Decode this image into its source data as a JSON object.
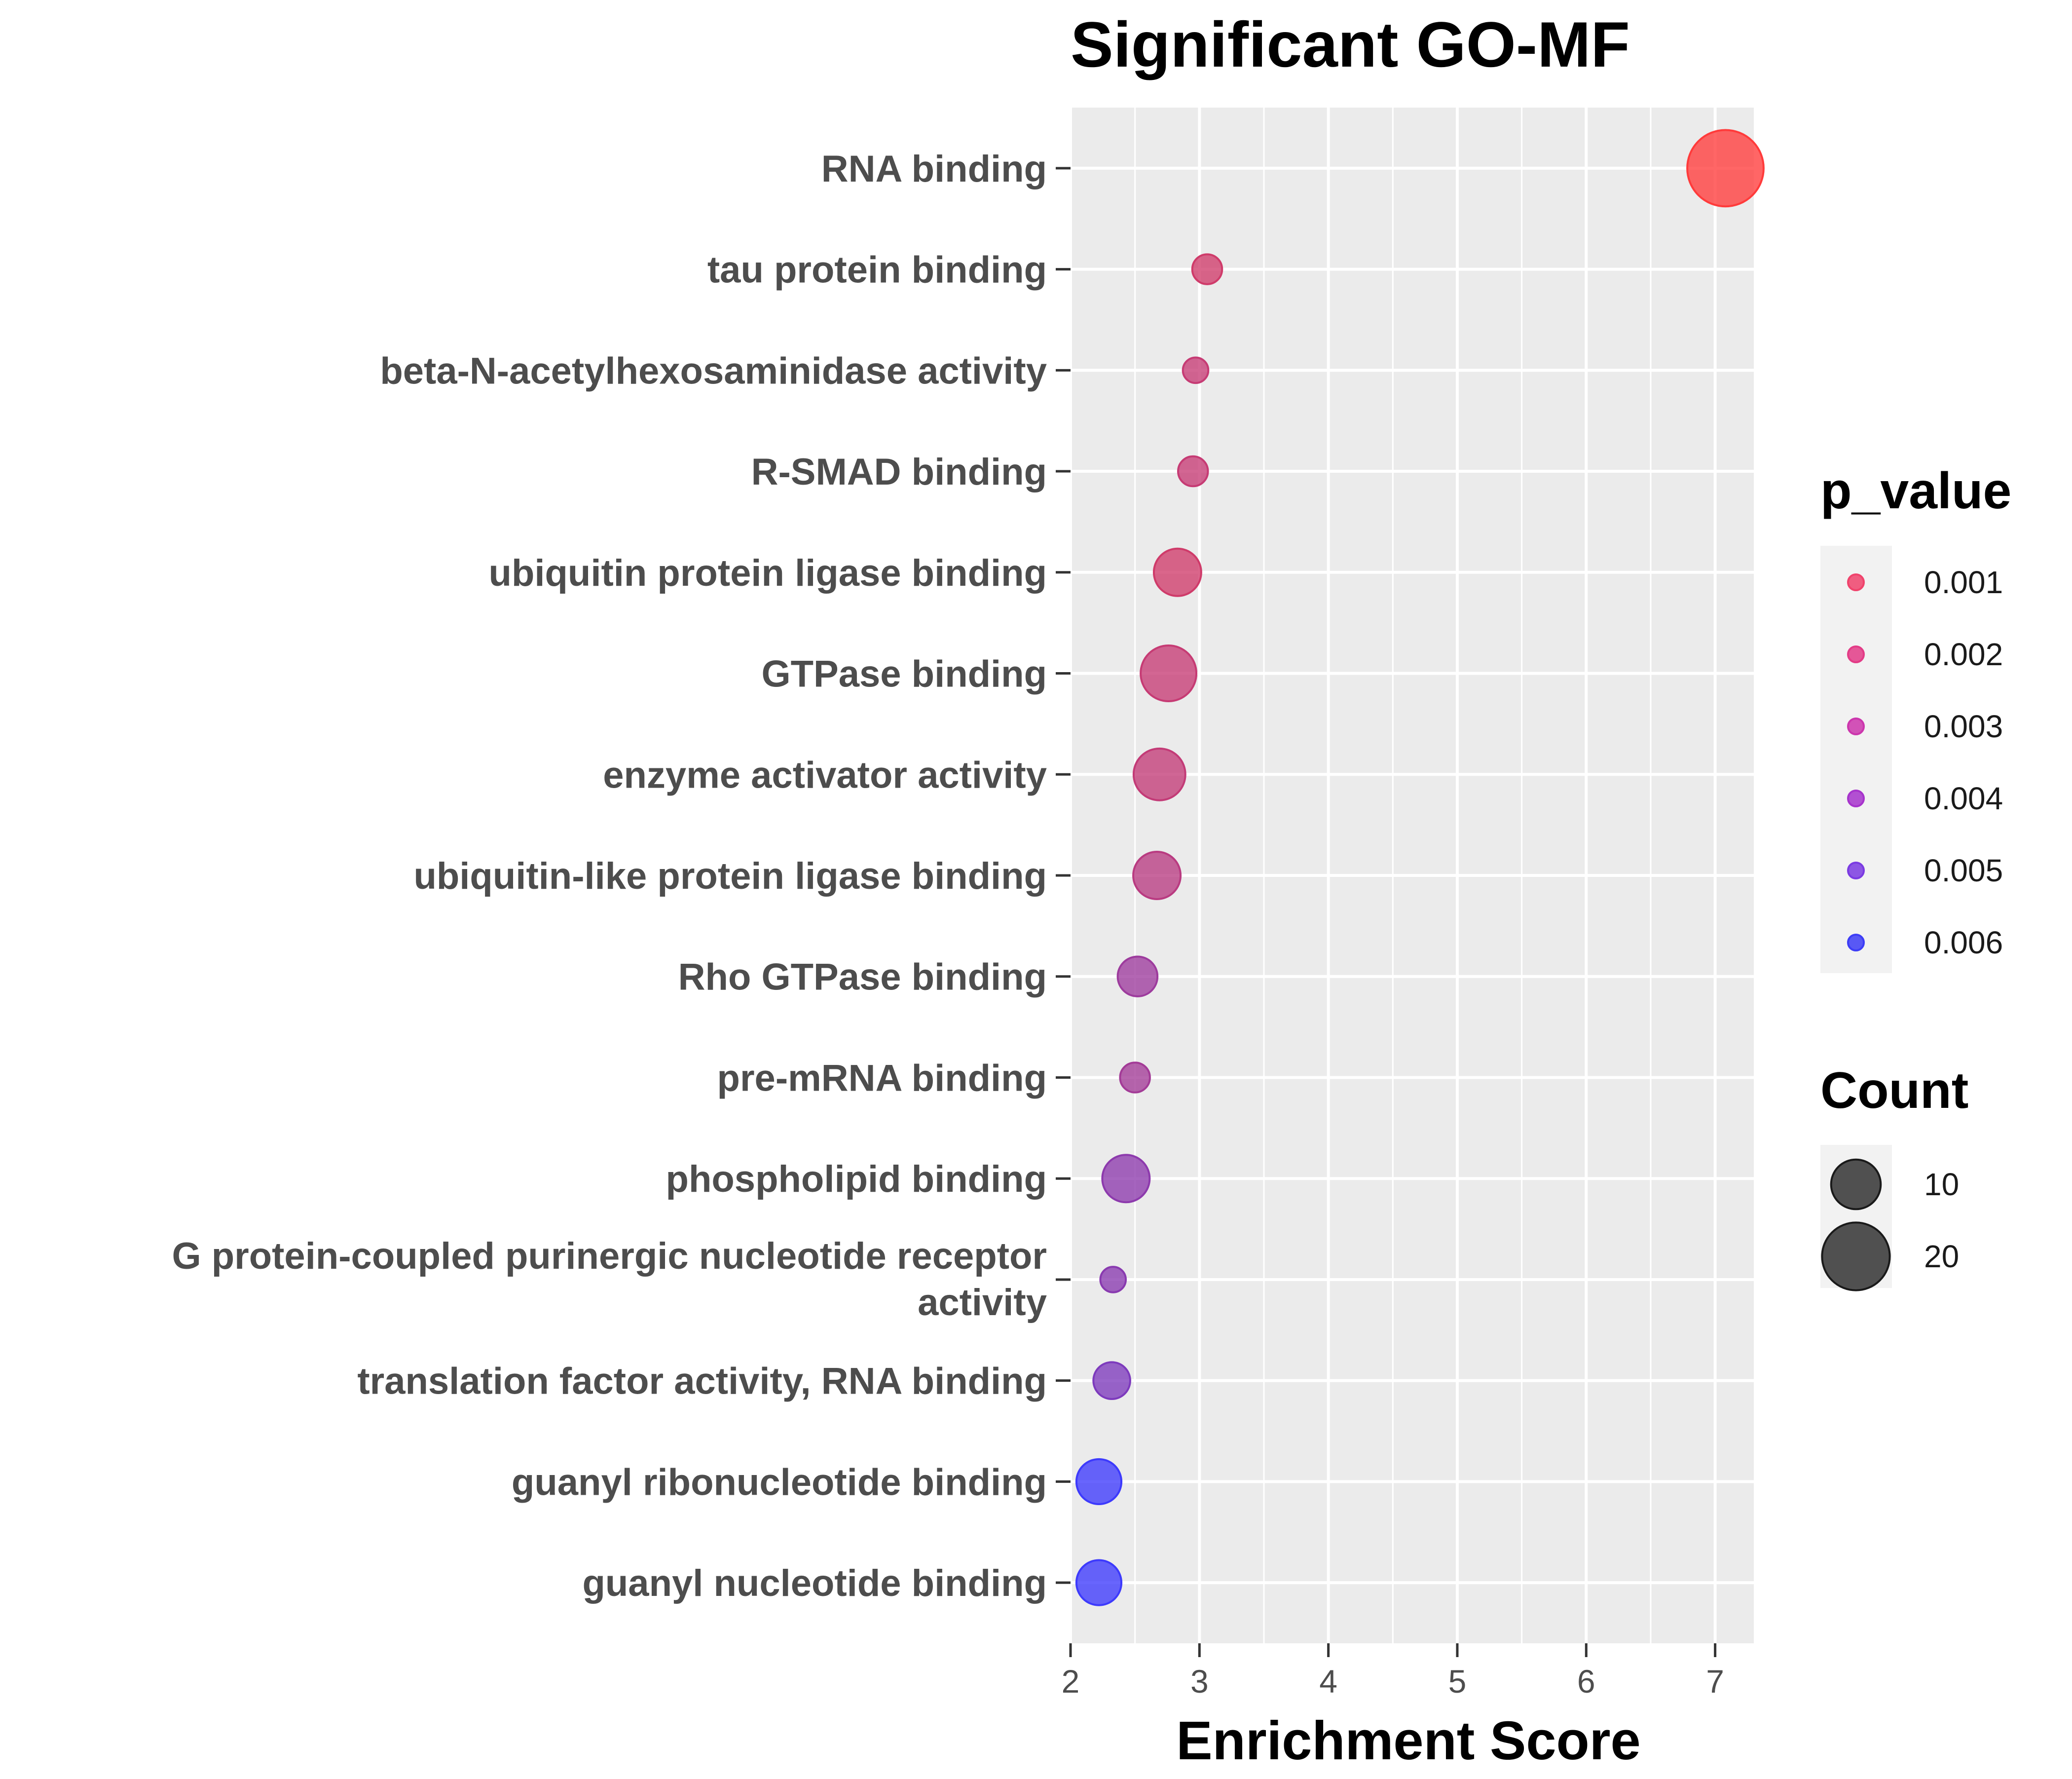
{
  "chart_data": {
    "type": "scatter",
    "title": "Significant GO-MF",
    "xlabel": "Enrichment Score",
    "ylabel": "",
    "xlim": [
      2,
      7.3
    ],
    "xticks": [
      2,
      3,
      4,
      5,
      6,
      7
    ],
    "grid": true,
    "categories": [
      "RNA binding",
      "tau protein binding",
      "beta-N-acetylhexosaminidase activity",
      "R-SMAD binding",
      "ubiquitin protein ligase binding",
      "GTPase binding",
      "enzyme activator activity",
      "ubiquitin-like protein ligase binding",
      "Rho GTPase binding",
      "pre-mRNA binding",
      "phospholipid binding",
      "G protein-coupled purinergic nucleotide receptor activity",
      "translation factor activity, RNA binding",
      "guanyl ribonucleotide binding",
      "guanyl nucleotide binding"
    ],
    "points": [
      {
        "term": "RNA binding",
        "x": 7.08,
        "count": 26,
        "p_value": 1e-07
      },
      {
        "term": "tau protein binding",
        "x": 3.06,
        "count": 3,
        "p_value": 0.0015
      },
      {
        "term": "beta-N-acetylhexosaminidase activity",
        "x": 2.97,
        "count": 2,
        "p_value": 0.0018
      },
      {
        "term": "R-SMAD binding",
        "x": 2.95,
        "count": 3,
        "p_value": 0.0018
      },
      {
        "term": "ubiquitin protein ligase binding",
        "x": 2.83,
        "count": 9,
        "p_value": 0.0015
      },
      {
        "term": "GTPase binding",
        "x": 2.76,
        "count": 13,
        "p_value": 0.0018
      },
      {
        "term": "enzyme activator activity",
        "x": 2.69,
        "count": 11,
        "p_value": 0.0019
      },
      {
        "term": "ubiquitin-like protein ligase binding",
        "x": 2.67,
        "count": 9,
        "p_value": 0.0022
      },
      {
        "term": "Rho GTPase binding",
        "x": 2.52,
        "count": 6,
        "p_value": 0.0031
      },
      {
        "term": "pre-mRNA binding",
        "x": 2.5,
        "count": 3,
        "p_value": 0.0029
      },
      {
        "term": "phospholipid binding",
        "x": 2.43,
        "count": 9,
        "p_value": 0.0036
      },
      {
        "term": "G protein-coupled purinergic nucleotide receptor activity",
        "x": 2.33,
        "count": 2,
        "p_value": 0.0037
      },
      {
        "term": "translation factor activity, RNA binding",
        "x": 2.32,
        "count": 5,
        "p_value": 0.0041
      },
      {
        "term": "guanyl ribonucleotide binding",
        "x": 2.22,
        "count": 8,
        "p_value": 0.0061
      },
      {
        "term": "guanyl nucleotide binding",
        "x": 2.22,
        "count": 8,
        "p_value": 0.0061
      }
    ],
    "legend_color": {
      "title": "p_value",
      "entries": [
        {
          "label": "0.001",
          "color": "#f0436c"
        },
        {
          "label": "0.002",
          "color": "#e33c87"
        },
        {
          "label": "0.003",
          "color": "#cc36ad"
        },
        {
          "label": "0.004",
          "color": "#a734cc"
        },
        {
          "label": "0.005",
          "color": "#7b3be2"
        },
        {
          "label": "0.006",
          "color": "#3d3df6"
        }
      ]
    },
    "legend_size": {
      "title": "Count",
      "entries": [
        {
          "label": "10",
          "count": 10
        },
        {
          "label": "20",
          "count": 20
        }
      ]
    },
    "legend_position": "right",
    "colors": {
      "low": "#ff3b3b",
      "high": "#3a3aff",
      "panel": "#ebebeb",
      "grid": "#ffffff",
      "axis_text": "#4d4d4d"
    }
  }
}
